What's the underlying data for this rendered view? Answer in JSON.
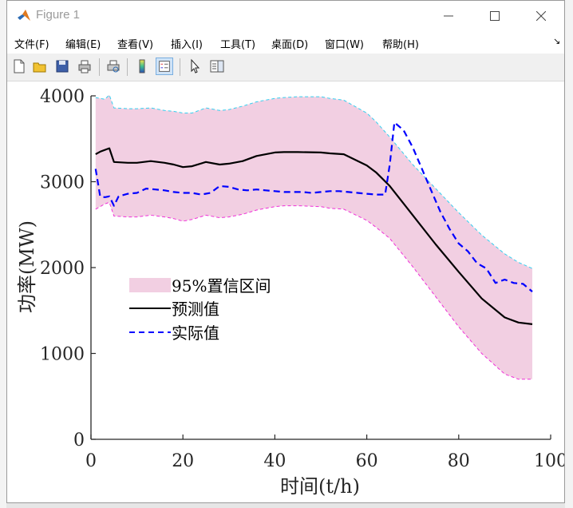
{
  "window": {
    "title": "Figure 1"
  },
  "menu": [
    "文件(F)",
    "编辑(E)",
    "查看(V)",
    "插入(I)",
    "工具(T)",
    "桌面(D)",
    "窗口(W)",
    "帮助(H)"
  ],
  "toolbar_icons": [
    "new-figure-icon",
    "open-file-icon",
    "save-icon",
    "print-icon",
    "print-preview-icon",
    "colorbar-icon",
    "legend-icon",
    "pointer-icon",
    "property-editor-icon"
  ],
  "chart_data": {
    "type": "line",
    "xlabel": "时间(t/h)",
    "ylabel": "功率(MW)",
    "xlim": [
      0,
      100
    ],
    "ylim": [
      0,
      4000
    ],
    "xticks": [
      0,
      20,
      40,
      60,
      80,
      100
    ],
    "yticks": [
      0,
      1000,
      2000,
      3000,
      4000
    ],
    "grid": false,
    "legend_position": "middle-left",
    "legend": [
      "95%置信区间",
      "预测值",
      "实际值"
    ],
    "series": [
      {
        "name": "预测值",
        "style": "solid",
        "color": "#000000",
        "x": [
          1,
          2,
          4,
          5,
          8,
          10,
          13,
          16,
          18,
          20,
          22,
          25,
          28,
          30,
          33,
          36,
          40,
          42,
          45,
          50,
          52,
          55,
          60,
          62,
          65,
          70,
          75,
          80,
          85,
          90,
          93,
          96
        ],
        "y": [
          3320,
          3350,
          3390,
          3230,
          3220,
          3220,
          3240,
          3220,
          3200,
          3170,
          3180,
          3230,
          3200,
          3210,
          3240,
          3300,
          3340,
          3345,
          3345,
          3340,
          3330,
          3320,
          3190,
          3110,
          2950,
          2610,
          2270,
          1950,
          1640,
          1420,
          1360,
          1340
        ]
      },
      {
        "name": "实际值",
        "style": "dashed",
        "color": "#0000ff",
        "x": [
          1,
          2,
          3,
          4,
          5,
          6,
          8,
          10,
          12,
          14,
          16,
          18,
          20,
          22,
          24,
          26,
          28,
          30,
          32,
          34,
          36,
          38,
          40,
          42,
          44,
          46,
          48,
          50,
          52,
          54,
          56,
          58,
          60,
          62,
          64,
          65,
          66,
          68,
          70,
          72,
          74,
          76,
          78,
          80,
          82,
          84,
          86,
          88,
          90,
          92,
          94,
          96
        ],
        "y": [
          3150,
          2830,
          2820,
          2830,
          2720,
          2830,
          2860,
          2870,
          2920,
          2910,
          2900,
          2880,
          2870,
          2870,
          2850,
          2870,
          2950,
          2940,
          2910,
          2900,
          2910,
          2900,
          2890,
          2880,
          2880,
          2880,
          2870,
          2880,
          2890,
          2890,
          2880,
          2870,
          2860,
          2850,
          2850,
          3200,
          3690,
          3600,
          3400,
          3150,
          2900,
          2650,
          2450,
          2280,
          2190,
          2050,
          1990,
          1820,
          1860,
          1820,
          1810,
          1720
        ]
      }
    ],
    "band": {
      "name": "95%置信区间",
      "color": "#f2cfe2",
      "x": [
        1,
        3,
        4,
        5,
        8,
        10,
        13,
        16,
        18,
        20,
        22,
        25,
        28,
        30,
        33,
        36,
        40,
        42,
        45,
        50,
        52,
        55,
        60,
        62,
        65,
        70,
        75,
        80,
        85,
        90,
        93,
        96
      ],
      "upper": [
        3980,
        3960,
        4010,
        3860,
        3850,
        3850,
        3860,
        3830,
        3820,
        3800,
        3800,
        3860,
        3830,
        3840,
        3880,
        3930,
        3970,
        3980,
        3990,
        3990,
        3970,
        3950,
        3800,
        3700,
        3520,
        3200,
        2920,
        2640,
        2380,
        2160,
        2060,
        1990
      ],
      "lower": [
        2680,
        2740,
        2760,
        2600,
        2590,
        2590,
        2610,
        2590,
        2570,
        2540,
        2560,
        2610,
        2580,
        2590,
        2620,
        2670,
        2710,
        2720,
        2720,
        2710,
        2690,
        2680,
        2550,
        2470,
        2340,
        2010,
        1660,
        1310,
        1000,
        760,
        700,
        700
      ]
    }
  }
}
